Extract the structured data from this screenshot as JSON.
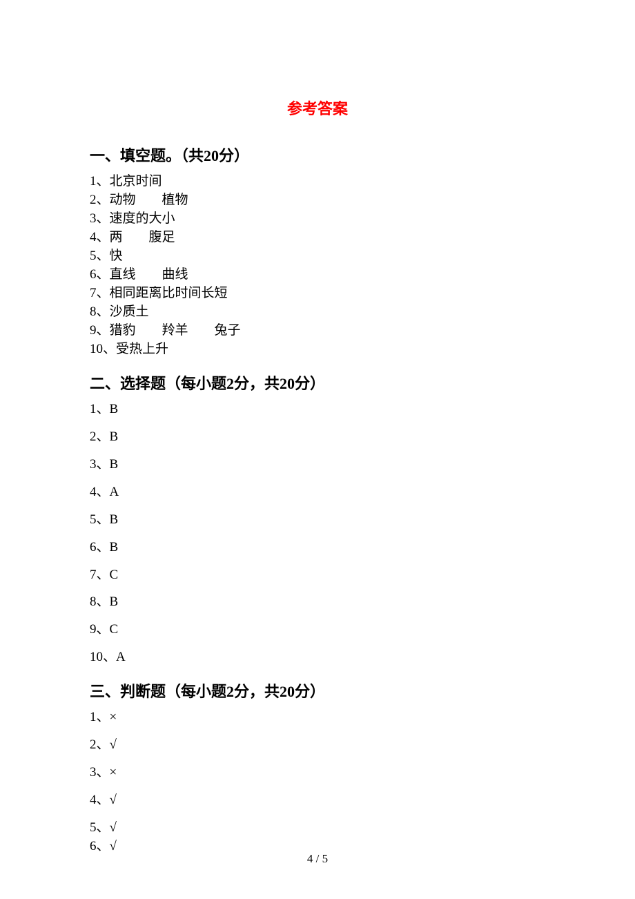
{
  "title": "参考答案",
  "title_color": "#ff0000",
  "text_color": "#000000",
  "background_color": "#ffffff",
  "title_fontsize": 22,
  "heading_fontsize": 22,
  "body_fontsize": 19,
  "sections": {
    "fill_blank": {
      "heading": "一、填空题。（共20分）",
      "items": [
        {
          "num": "1、",
          "parts": [
            "北京时间"
          ]
        },
        {
          "num": "2、",
          "parts": [
            "动物",
            "植物"
          ]
        },
        {
          "num": "3、",
          "parts": [
            "速度的大小"
          ]
        },
        {
          "num": "4、",
          "parts": [
            "两",
            "腹足"
          ]
        },
        {
          "num": "5、",
          "parts": [
            "快"
          ]
        },
        {
          "num": "6、",
          "parts": [
            "直线",
            "曲线"
          ]
        },
        {
          "num": "7、",
          "parts": [
            "相同距离比时间长短"
          ]
        },
        {
          "num": "8、",
          "parts": [
            "沙质土"
          ]
        },
        {
          "num": "9、",
          "parts": [
            "猎豹",
            "羚羊",
            "兔子"
          ]
        },
        {
          "num": "10、",
          "parts": [
            "受热上升"
          ]
        }
      ]
    },
    "choice": {
      "heading": "二、选择题（每小题2分，共20分）",
      "items": [
        {
          "num": "1、",
          "ans": "B"
        },
        {
          "num": "2、",
          "ans": "B"
        },
        {
          "num": "3、",
          "ans": "B"
        },
        {
          "num": "4、",
          "ans": "A"
        },
        {
          "num": "5、",
          "ans": "B"
        },
        {
          "num": "6、",
          "ans": "B"
        },
        {
          "num": "7、",
          "ans": "C"
        },
        {
          "num": "8、",
          "ans": "B"
        },
        {
          "num": "9、",
          "ans": "C"
        },
        {
          "num": "10、",
          "ans": "A"
        }
      ]
    },
    "judge": {
      "heading": "三、判断题（每小题2分，共20分）",
      "items": [
        {
          "num": "1、",
          "ans": "×"
        },
        {
          "num": "2、",
          "ans": "√"
        },
        {
          "num": "3、",
          "ans": "×"
        },
        {
          "num": "4、",
          "ans": "√"
        },
        {
          "num": "5、",
          "ans": "√"
        },
        {
          "num": "6、",
          "ans": "√"
        }
      ]
    }
  },
  "page_number": "4 / 5"
}
